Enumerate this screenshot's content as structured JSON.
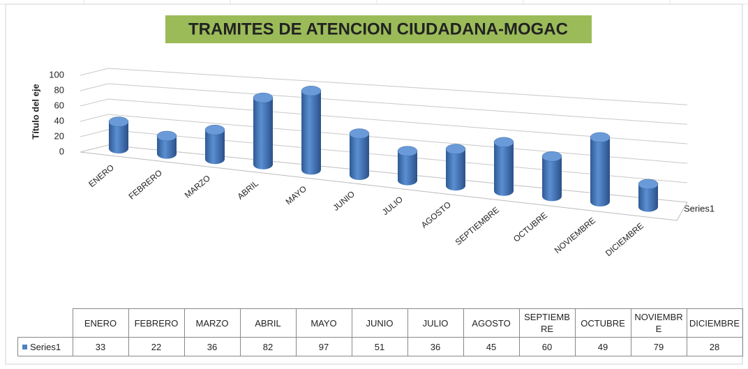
{
  "chart_data": {
    "type": "cylinder3d",
    "title": "TRAMITES DE ATENCION CIUDADANA-MOGAC",
    "y_axis_label": "Título del eje",
    "categories": [
      "ENERO",
      "FEBRERO",
      "MARZO",
      "ABRIL",
      "MAYO",
      "JUNIO",
      "JULIO",
      "AGOSTO",
      "SEPTIEMBRE",
      "OCTUBRE",
      "NOVIEMBRE",
      "DICIEMBRE"
    ],
    "series": [
      {
        "name": "Series1",
        "color": "#4f81bd",
        "values": [
          33,
          22,
          36,
          82,
          97,
          51,
          36,
          45,
          60,
          49,
          79,
          28
        ]
      }
    ],
    "ylim": [
      0,
      100
    ],
    "yticks": [
      0,
      20,
      40,
      60,
      80,
      100
    ],
    "grid": true,
    "data_table": true
  }
}
